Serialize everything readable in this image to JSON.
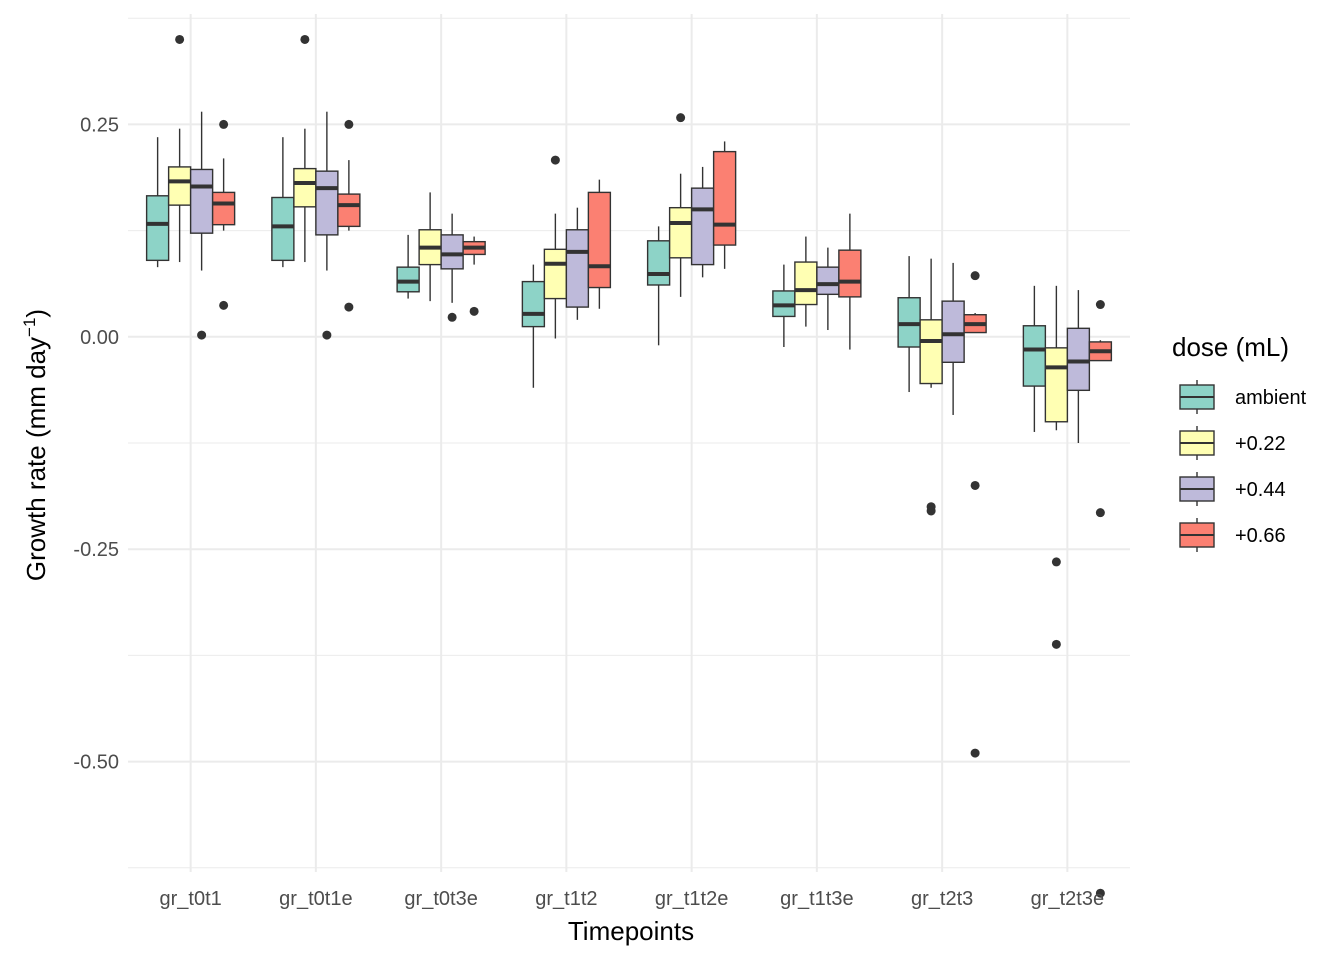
{
  "chart_data": {
    "type": "boxplot",
    "title": "",
    "xlabel": "Timepoints",
    "ylabel": "Growth rate (mm day",
    "ylabel_superscript": "−1",
    "ylabel_close": ")",
    "ylim": [
      -0.63,
      0.38
    ],
    "yticks": [
      0.25,
      0.0,
      -0.25,
      -0.5
    ],
    "ytick_labels": [
      "0.25",
      "0.00",
      "-0.25",
      "-0.50"
    ],
    "grid": true,
    "legend": {
      "title": "dose (mL)",
      "position": "right",
      "entries": [
        "ambient",
        "+0.22",
        "+0.44",
        "+0.66"
      ]
    },
    "colors": [
      "#8dd3c7",
      "#ffffb3",
      "#bebada",
      "#fb8072"
    ],
    "categories": [
      "gr_t0t1",
      "gr_t0t1e",
      "gr_t0t3e",
      "gr_t1t2",
      "gr_t1t2e",
      "gr_t1t3e",
      "gr_t2t3",
      "gr_t2t3e"
    ],
    "series": [
      {
        "name": "ambient",
        "boxes": [
          {
            "wlo": 0.082,
            "q1": 0.09,
            "med": 0.133,
            "q3": 0.166,
            "whi": 0.235,
            "out": []
          },
          {
            "wlo": 0.082,
            "q1": 0.09,
            "med": 0.13,
            "q3": 0.164,
            "whi": 0.235,
            "out": []
          },
          {
            "wlo": 0.045,
            "q1": 0.053,
            "med": 0.065,
            "q3": 0.082,
            "whi": 0.12,
            "out": []
          },
          {
            "wlo": -0.06,
            "q1": 0.012,
            "med": 0.027,
            "q3": 0.065,
            "whi": 0.085,
            "out": []
          },
          {
            "wlo": -0.01,
            "q1": 0.061,
            "med": 0.074,
            "q3": 0.113,
            "whi": 0.13,
            "out": []
          },
          {
            "wlo": -0.012,
            "q1": 0.024,
            "med": 0.037,
            "q3": 0.054,
            "whi": 0.085,
            "out": []
          },
          {
            "wlo": -0.065,
            "q1": -0.012,
            "med": 0.015,
            "q3": 0.046,
            "whi": 0.095,
            "out": []
          },
          {
            "wlo": -0.112,
            "q1": -0.058,
            "med": -0.015,
            "q3": 0.013,
            "whi": 0.06,
            "out": []
          }
        ]
      },
      {
        "name": "+0.22",
        "boxes": [
          {
            "wlo": 0.088,
            "q1": 0.155,
            "med": 0.183,
            "q3": 0.2,
            "whi": 0.245,
            "out": [
              0.35
            ]
          },
          {
            "wlo": 0.088,
            "q1": 0.153,
            "med": 0.181,
            "q3": 0.198,
            "whi": 0.245,
            "out": [
              0.35
            ]
          },
          {
            "wlo": 0.042,
            "q1": 0.085,
            "med": 0.105,
            "q3": 0.126,
            "whi": 0.17,
            "out": []
          },
          {
            "wlo": -0.002,
            "q1": 0.045,
            "med": 0.086,
            "q3": 0.103,
            "whi": 0.145,
            "out": [
              0.208
            ]
          },
          {
            "wlo": 0.047,
            "q1": 0.093,
            "med": 0.134,
            "q3": 0.152,
            "whi": 0.192,
            "out": [
              0.258
            ]
          },
          {
            "wlo": 0.012,
            "q1": 0.038,
            "med": 0.055,
            "q3": 0.088,
            "whi": 0.118,
            "out": []
          },
          {
            "wlo": -0.06,
            "q1": -0.055,
            "med": -0.005,
            "q3": 0.02,
            "whi": 0.092,
            "out": [
              -0.2,
              -0.205
            ]
          },
          {
            "wlo": -0.11,
            "q1": -0.1,
            "med": -0.036,
            "q3": -0.013,
            "whi": 0.06,
            "out": [
              -0.265,
              -0.362
            ]
          }
        ]
      },
      {
        "name": "+0.44",
        "boxes": [
          {
            "wlo": 0.078,
            "q1": 0.122,
            "med": 0.177,
            "q3": 0.197,
            "whi": 0.265,
            "out": [
              0.002
            ]
          },
          {
            "wlo": 0.078,
            "q1": 0.12,
            "med": 0.175,
            "q3": 0.195,
            "whi": 0.265,
            "out": [
              0.002
            ]
          },
          {
            "wlo": 0.04,
            "q1": 0.08,
            "med": 0.097,
            "q3": 0.12,
            "whi": 0.145,
            "out": [
              0.023
            ]
          },
          {
            "wlo": 0.02,
            "q1": 0.035,
            "med": 0.1,
            "q3": 0.126,
            "whi": 0.152,
            "out": []
          },
          {
            "wlo": 0.07,
            "q1": 0.085,
            "med": 0.15,
            "q3": 0.175,
            "whi": 0.2,
            "out": []
          },
          {
            "wlo": 0.008,
            "q1": 0.05,
            "med": 0.062,
            "q3": 0.082,
            "whi": 0.105,
            "out": []
          },
          {
            "wlo": -0.092,
            "q1": -0.03,
            "med": 0.003,
            "q3": 0.042,
            "whi": 0.087,
            "out": []
          },
          {
            "wlo": -0.125,
            "q1": -0.063,
            "med": -0.029,
            "q3": 0.01,
            "whi": 0.055,
            "out": []
          }
        ]
      },
      {
        "name": "+0.66",
        "boxes": [
          {
            "wlo": 0.125,
            "q1": 0.132,
            "med": 0.157,
            "q3": 0.17,
            "whi": 0.21,
            "out": [
              0.25,
              0.037
            ]
          },
          {
            "wlo": 0.125,
            "q1": 0.13,
            "med": 0.155,
            "q3": 0.168,
            "whi": 0.208,
            "out": [
              0.25,
              0.035
            ]
          },
          {
            "wlo": 0.085,
            "q1": 0.097,
            "med": 0.105,
            "q3": 0.112,
            "whi": 0.118,
            "out": [
              0.03
            ]
          },
          {
            "wlo": 0.033,
            "q1": 0.058,
            "med": 0.083,
            "q3": 0.17,
            "whi": 0.185,
            "out": []
          },
          {
            "wlo": 0.08,
            "q1": 0.108,
            "med": 0.132,
            "q3": 0.218,
            "whi": 0.23,
            "out": []
          },
          {
            "wlo": -0.015,
            "q1": 0.047,
            "med": 0.065,
            "q3": 0.102,
            "whi": 0.145,
            "out": []
          },
          {
            "wlo": 0.005,
            "q1": 0.005,
            "med": 0.015,
            "q3": 0.026,
            "whi": 0.028,
            "out": [
              0.072,
              -0.175,
              -0.49
            ]
          },
          {
            "wlo": -0.028,
            "q1": -0.028,
            "med": -0.017,
            "q3": -0.006,
            "whi": -0.004,
            "out": [
              0.038,
              -0.207,
              -0.655
            ]
          }
        ]
      }
    ]
  }
}
